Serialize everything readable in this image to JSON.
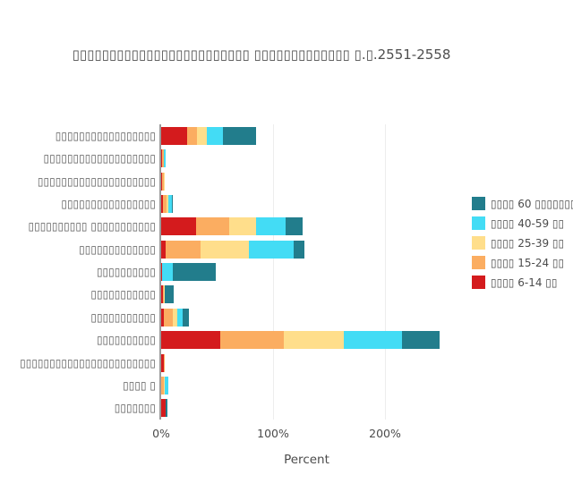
{
  "chart_data": {
    "type": "bar",
    "orientation": "horizontal",
    "stacked": true,
    "title": "▯▯▯▯▯▯▯▯▯▯▯▯▯▯▯▯▯▯▯▯▯▯▯▯ ▯▯▯▯▯▯▯▯▯▯▯▯▯ ▯.▯.2551-2558",
    "xlabel": "Percent",
    "xticks": [
      {
        "label": "0%",
        "value": 0
      },
      {
        "label": "100%",
        "value": 100
      },
      {
        "label": "200%",
        "value": 200
      }
    ],
    "xlim": [
      0,
      260
    ],
    "grid": true,
    "legend_position": "right",
    "categories": [
      "▯▯▯▯▯▯▯▯▯▯▯▯▯▯▯▯▯",
      "▯▯▯▯▯▯▯▯▯▯▯▯▯▯▯▯▯▯▯",
      "▯▯▯▯▯▯▯▯▯▯▯▯▯▯▯▯▯▯▯▯",
      "▯▯▯▯▯▯▯▯▯▯▯▯▯▯▯▯",
      "▯▯▯▯▯▯▯▯▯▯ ▯▯▯▯▯▯▯▯▯▯▯",
      "▯▯▯▯▯▯▯▯▯▯▯▯▯",
      "▯▯▯▯▯▯▯▯▯▯",
      "▯▯▯▯▯▯▯▯▯▯▯",
      "▯▯▯▯▯▯▯▯▯▯▯",
      "▯▯▯▯▯▯▯▯▯▯",
      "▯▯▯▯▯▯▯▯▯▯▯▯▯▯▯▯▯▯▯▯▯▯▯",
      "▯▯▯▯ ▯",
      "▯▯▯▯▯▯▯"
    ],
    "series": [
      {
        "name": "▯▯▯▯ 6-14 ▯▯",
        "color": "#d41b1d",
        "values": [
          23,
          0.8,
          0.5,
          1.8,
          31,
          4,
          1,
          1.5,
          2,
          53,
          2.5,
          0,
          4
        ]
      },
      {
        "name": "▯▯▯▯ 15-24 ▯▯",
        "color": "#fbad61",
        "values": [
          9,
          1.6,
          2,
          2.6,
          30,
          31.5,
          0,
          1,
          8,
          56.5,
          0.5,
          2.5,
          0
        ]
      },
      {
        "name": "▯▯▯▯ 25-39 ▯▯",
        "color": "#ffde8b",
        "values": [
          9,
          0,
          1,
          1.8,
          24,
          43,
          0,
          0.5,
          4,
          54,
          0,
          1,
          0
        ]
      },
      {
        "name": "▯▯▯▯ 40-59 ▯▯",
        "color": "#43dcf5",
        "values": [
          14,
          1.6,
          0,
          3.6,
          26,
          40,
          9.5,
          0,
          5,
          51.5,
          0,
          2.5,
          0
        ]
      },
      {
        "name": "▯▯▯▯ 60 ▯▯▯▯▯▯▯▯",
        "color": "#227d8c",
        "values": [
          30,
          0,
          0,
          0.5,
          15,
          9.5,
          38,
          8,
          6,
          33.5,
          0,
          0,
          1.5
        ]
      }
    ],
    "legend_note": "legend shows series top-to-bottom: 60+, 40-59, 25-39, 15-24, 6-14"
  }
}
